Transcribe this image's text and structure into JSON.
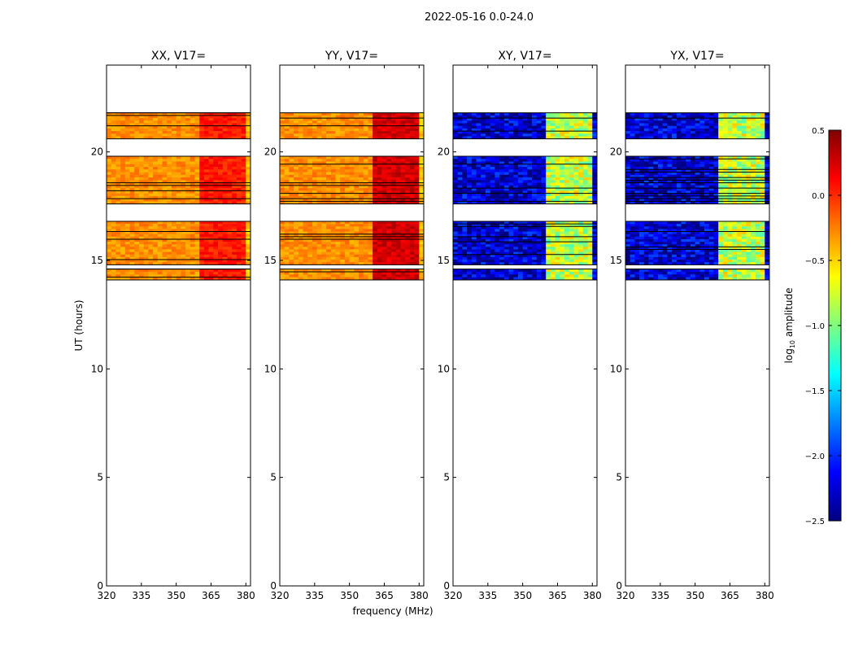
{
  "figure": {
    "suptitle": "2022-05-16 0.0-24.0",
    "xlabel": "frequency (MHz)",
    "ylabel": "UT (hours)",
    "colorbar_label_prefix": "log",
    "colorbar_label_sub": "10",
    "colorbar_label_suffix": " amplitude"
  },
  "chart_data": {
    "type": "heatmap",
    "x_range": [
      320,
      382
    ],
    "y_range": [
      0,
      24
    ],
    "x_ticks": [
      320,
      335,
      350,
      365,
      380
    ],
    "x_tick_labels": [
      "320",
      "335",
      "350",
      "365",
      "380"
    ],
    "y_ticks": [
      0,
      5,
      10,
      15,
      20
    ],
    "y_tick_labels": [
      "0",
      "5",
      "10",
      "15",
      "20"
    ],
    "colorbar": {
      "range": [
        -2.5,
        0.5
      ],
      "ticks": [
        0.5,
        0.0,
        -0.5,
        -1.0,
        -1.5,
        -2.0,
        -2.5
      ],
      "tick_labels": [
        "0.5",
        "0.0",
        "−0.5",
        "−1.0",
        "−1.5",
        "−2.0",
        "−2.5"
      ],
      "colormap": [
        "#00007f",
        "#0000ff",
        "#007fff",
        "#00ffff",
        "#7fff7f",
        "#ffff00",
        "#ff7f00",
        "#ff0000",
        "#7f0000"
      ]
    },
    "time_blocks": [
      {
        "start": 20.6,
        "end": 21.8
      },
      {
        "start": 17.6,
        "end": 19.8
      },
      {
        "start": 14.8,
        "end": 16.8
      },
      {
        "start": 14.1,
        "end": 14.6
      }
    ],
    "bright_channels_mhz": [
      362,
      363,
      364,
      365,
      366,
      368,
      369,
      370,
      373,
      374,
      377,
      378
    ],
    "panels": [
      {
        "title": "XX, V17=",
        "kind": "auto",
        "base_value": -0.3,
        "bright_value": 0.05
      },
      {
        "title": "YY, V17=",
        "kind": "auto",
        "base_value": -0.3,
        "bright_value": 0.25
      },
      {
        "title": "XY, V17=",
        "kind": "cross",
        "base_value": -2.25,
        "bright_value": -0.8
      },
      {
        "title": "YX, V17=",
        "kind": "cross",
        "base_value": -2.25,
        "bright_value": -0.8
      }
    ]
  }
}
